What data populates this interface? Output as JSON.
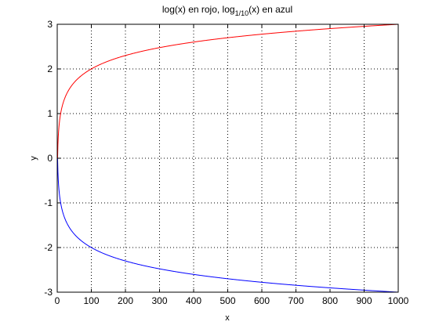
{
  "chart_data": {
    "type": "line",
    "title": {
      "part1": "log(x) en rojo, log",
      "subscript": "1/10",
      "part2": "(x) en azul"
    },
    "xlabel": "x",
    "ylabel": "y",
    "xlim": [
      0,
      1000
    ],
    "ylim": [
      -3,
      3
    ],
    "xticks": [
      0,
      100,
      200,
      300,
      400,
      500,
      600,
      700,
      800,
      900,
      1000
    ],
    "yticks": [
      -3,
      -2,
      -1,
      0,
      1,
      2,
      3
    ],
    "grid": true,
    "grid_style": "dotted",
    "legend": "none",
    "series": [
      {
        "color": "#ff0000",
        "function": "log10(x)",
        "x_domain": [
          1,
          1000
        ]
      },
      {
        "color": "#0000ff",
        "function": "log_1/10(x)",
        "x_domain": [
          1,
          1000
        ]
      }
    ]
  }
}
